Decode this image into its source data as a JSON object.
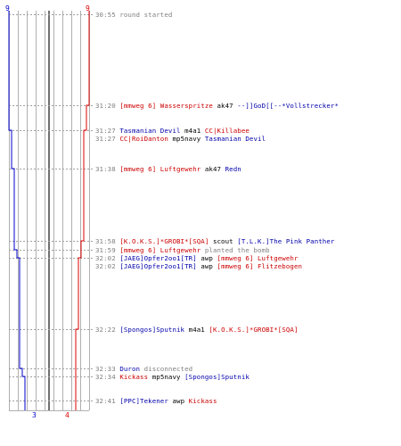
{
  "colors": {
    "team_a": "#0000cc",
    "team_b": "#dd0000",
    "grid": "#b0b0b0",
    "time": "#808080"
  },
  "chart_data": {
    "type": "line",
    "series": [
      {
        "team": "team_a",
        "start_count": 9,
        "end_count": 3,
        "steps": [
          {
            "time": "31:27",
            "count": 8
          },
          {
            "time": "31:38",
            "count": 7
          },
          {
            "time": "31:59",
            "count": 6
          },
          {
            "time": "32:02",
            "count": 5
          },
          {
            "time": "32:33",
            "count": 4
          },
          {
            "time": "32:34",
            "count": 3
          }
        ]
      },
      {
        "team": "team_b",
        "start_count": 9,
        "end_count": 4,
        "steps": [
          {
            "time": "31:20",
            "count": 8
          },
          {
            "time": "31:27",
            "count": 7
          },
          {
            "time": "31:58",
            "count": 6
          },
          {
            "time": "32:02",
            "count": 5
          },
          {
            "time": "32:22",
            "count": 4
          }
        ]
      }
    ],
    "top_labels": {
      "left": "9",
      "right": "9"
    },
    "bottom_labels": {
      "team_a": "3",
      "team_b": "4"
    },
    "xlim": [
      0,
      9
    ]
  },
  "events": [
    {
      "time": "30:55",
      "parts": [
        {
          "text": "round started",
          "role": "info"
        }
      ]
    },
    {
      "time": "31:20",
      "parts": [
        {
          "text": "[mmweg 6] Wasserspritze",
          "role": "red"
        },
        {
          "text": " ak47 ",
          "role": "plain"
        },
        {
          "text": "--]]GoD[[--*Vollstrecker*",
          "role": "blue"
        }
      ]
    },
    {
      "time": "31:27",
      "parts": [
        {
          "text": "Tasmanian Devil",
          "role": "blue"
        },
        {
          "text": " m4a1 ",
          "role": "plain"
        },
        {
          "text": "CC|Killabee",
          "role": "red"
        }
      ]
    },
    {
      "time": "31:27",
      "parts": [
        {
          "text": "CC|RoiDanton",
          "role": "red"
        },
        {
          "text": " mp5navy ",
          "role": "plain"
        },
        {
          "text": "Tasmanian Devil",
          "role": "blue"
        }
      ]
    },
    {
      "time": "31:38",
      "parts": [
        {
          "text": "[mmweg 6] Luftgewehr",
          "role": "red"
        },
        {
          "text": " ak47 ",
          "role": "plain"
        },
        {
          "text": "Redn",
          "role": "blue"
        }
      ]
    },
    {
      "time": "31:58",
      "parts": [
        {
          "text": "[K.O.K.S.]*GROBI*[SQA]",
          "role": "red"
        },
        {
          "text": " scout ",
          "role": "plain"
        },
        {
          "text": "[T.L.K.]The Pink Panther",
          "role": "blue"
        }
      ]
    },
    {
      "time": "31:59",
      "parts": [
        {
          "text": "[mmweg 6] Luftgewehr",
          "role": "red"
        },
        {
          "text": " planted the bomb",
          "role": "info"
        }
      ]
    },
    {
      "time": "32:02",
      "parts": [
        {
          "text": "[JAEG]Opfer2oo1[TR]",
          "role": "blue"
        },
        {
          "text": " awp ",
          "role": "plain"
        },
        {
          "text": "[mmweg 6] Luftgewehr",
          "role": "red"
        }
      ]
    },
    {
      "time": "32:02",
      "parts": [
        {
          "text": "[JAEG]Opfer2oo1[TR]",
          "role": "blue"
        },
        {
          "text": " awp ",
          "role": "plain"
        },
        {
          "text": "[mmweg 6] Flitzebogen",
          "role": "red"
        }
      ]
    },
    {
      "time": "32:22",
      "parts": [
        {
          "text": "[Spongos]Sputnik",
          "role": "blue"
        },
        {
          "text": " m4a1 ",
          "role": "plain"
        },
        {
          "text": "[K.O.K.S.]*GROBI*[SQA]",
          "role": "red"
        }
      ]
    },
    {
      "time": "32:33",
      "parts": [
        {
          "text": "Duron",
          "role": "blue"
        },
        {
          "text": " disconnected",
          "role": "info"
        }
      ]
    },
    {
      "time": "32:34",
      "parts": [
        {
          "text": "Kickass",
          "role": "red"
        },
        {
          "text": " mp5navy ",
          "role": "plain"
        },
        {
          "text": "[Spongos]Sputnik",
          "role": "blue"
        }
      ]
    },
    {
      "time": "32:41",
      "parts": [
        {
          "text": "[PPC]Tekener",
          "role": "blue"
        },
        {
          "text": " awp ",
          "role": "plain"
        },
        {
          "text": "Kickass",
          "role": "red"
        }
      ]
    }
  ]
}
